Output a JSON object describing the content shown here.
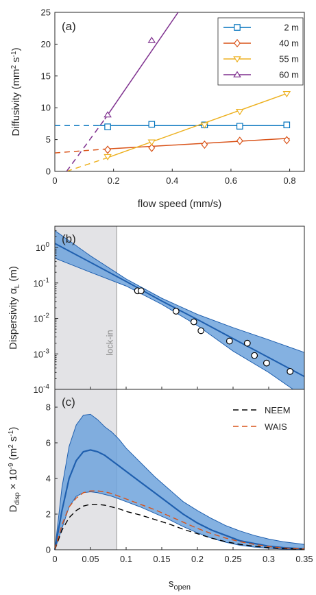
{
  "chart_data": [
    {
      "panel": "(a)",
      "type": "line",
      "xlabel": "flow speed (mm/s)",
      "ylabel_main": "Diffusivity (mm",
      "ylabel_sup1": "2",
      "ylabel_mid": " s",
      "ylabel_sup2": "-1",
      "ylabel_end": ")",
      "xlim": [
        0,
        0.85
      ],
      "ylim": [
        0,
        25
      ],
      "xticks": [
        "0",
        "0.2",
        "0.4",
        "0.6",
        "0.8"
      ],
      "xtick_values": [
        0,
        0.2,
        0.4,
        0.6,
        0.8
      ],
      "yticks": [
        "0",
        "5",
        "10",
        "15",
        "20",
        "25"
      ],
      "ytick_values": [
        0,
        5,
        10,
        15,
        20,
        25
      ],
      "series": [
        {
          "name": "2 m",
          "color": "#0072BD",
          "marker": "square",
          "x": [
            0.18,
            0.33,
            0.51,
            0.63,
            0.79
          ],
          "y": [
            7.0,
            7.4,
            7.3,
            7.1,
            7.3
          ],
          "fit_solid": [
            [
              0.15,
              7.2
            ],
            [
              0.8,
              7.2
            ]
          ],
          "fit_dashed": [
            [
              0,
              7.2
            ],
            [
              0.15,
              7.2
            ]
          ]
        },
        {
          "name": "40 m",
          "color": "#D95319",
          "marker": "diamond",
          "x": [
            0.18,
            0.33,
            0.51,
            0.63,
            0.79
          ],
          "y": [
            3.4,
            3.7,
            4.2,
            4.8,
            4.9
          ],
          "fit_solid": [
            [
              0.17,
              3.5
            ],
            [
              0.8,
              5.2
            ]
          ],
          "fit_dashed": [
            [
              0,
              2.9
            ],
            [
              0.17,
              3.5
            ]
          ]
        },
        {
          "name": "55 m",
          "color": "#EDB120",
          "marker": "triangle-down",
          "x": [
            0.18,
            0.33,
            0.51,
            0.63,
            0.79
          ],
          "y": [
            2.3,
            4.6,
            7.3,
            9.4,
            12.2
          ],
          "fit_solid": [
            [
              0.17,
              2.0
            ],
            [
              0.8,
              12.4
            ]
          ],
          "fit_dashed": [
            [
              0.04,
              0
            ],
            [
              0.17,
              2.0
            ]
          ]
        },
        {
          "name": "60 m",
          "color": "#7E2F8E",
          "marker": "triangle-up",
          "x": [
            0.18,
            0.33
          ],
          "y": [
            8.9,
            20.6
          ],
          "fit_solid": [
            [
              0.17,
              8.2
            ],
            [
              0.42,
              25
            ]
          ],
          "fit_dashed": [
            [
              0.04,
              0
            ],
            [
              0.17,
              8.2
            ]
          ]
        }
      ],
      "legend_position": "top-right"
    },
    {
      "panel": "(b)",
      "type": "scatter",
      "ylabel_main": "Dispersivity  α",
      "ylabel_sub": "L",
      "ylabel_end": " (m)",
      "xlim": [
        0,
        0.35
      ],
      "ylim_log": [
        -4,
        0.6
      ],
      "yscale": "log",
      "ytick_base": "10",
      "ytick_exponents": [
        "-4",
        "-3",
        "-2",
        "-1",
        "0"
      ],
      "ytick_values": [
        -4,
        -3,
        -2,
        -1,
        0
      ],
      "xtick_values": [
        0,
        0.05,
        0.1,
        0.15,
        0.2,
        0.25,
        0.3,
        0.35
      ],
      "shaded_region": {
        "x": [
          0,
          0.087
        ],
        "label": "lock-in"
      },
      "points": {
        "x": [
          0.116,
          0.121,
          0.17,
          0.195,
          0.205,
          0.245,
          0.27,
          0.28,
          0.297,
          0.33
        ],
        "y": [
          0.06,
          0.06,
          0.016,
          0.008,
          0.0045,
          0.0023,
          0.002,
          0.0009,
          0.00055,
          0.00032
        ]
      },
      "fit": {
        "x": [
          0,
          0.05,
          0.1,
          0.15,
          0.2,
          0.25,
          0.3,
          0.35
        ],
        "mid": [
          1.3,
          0.38,
          0.11,
          0.031,
          0.0093,
          0.0027,
          0.00079,
          0.00023
        ],
        "upper": [
          3.0,
          0.58,
          0.13,
          0.037,
          0.013,
          0.0055,
          0.0025,
          0.0011
        ],
        "lower": [
          0.5,
          0.2,
          0.082,
          0.025,
          0.0063,
          0.0012,
          0.0003,
          6e-05
        ]
      }
    },
    {
      "panel": "(c)",
      "type": "area",
      "xlabel_main": "s",
      "xlabel_sub": "open",
      "ylabel_main": "D",
      "ylabel_sub": "disp",
      "ylabel_mid": " × 10",
      "ylabel_sup1": "-9",
      "ylabel_mid2": "  (m",
      "ylabel_sup2": "2",
      "ylabel_mid3": " s",
      "ylabel_sup3": "-1",
      "ylabel_end": ")",
      "xlim": [
        0,
        0.35
      ],
      "ylim": [
        0,
        9
      ],
      "xticks": [
        "0",
        "0.05",
        "0.1",
        "0.15",
        "0.2",
        "0.25",
        "0.3",
        "0.35"
      ],
      "xtick_values": [
        0,
        0.05,
        0.1,
        0.15,
        0.2,
        0.25,
        0.3,
        0.35
      ],
      "yticks": [
        "0",
        "2",
        "4",
        "6",
        "8"
      ],
      "ytick_values": [
        0,
        2,
        4,
        6,
        8
      ],
      "shaded_region": {
        "x": [
          0,
          0.087
        ]
      },
      "band": {
        "x": [
          0,
          0.01,
          0.02,
          0.03,
          0.04,
          0.05,
          0.06,
          0.07,
          0.08,
          0.09,
          0.1,
          0.12,
          0.14,
          0.16,
          0.18,
          0.2,
          0.22,
          0.24,
          0.26,
          0.28,
          0.3,
          0.32,
          0.35
        ],
        "mid": [
          0,
          2.2,
          4.0,
          5.0,
          5.5,
          5.6,
          5.5,
          5.3,
          5.0,
          4.7,
          4.4,
          3.8,
          3.2,
          2.6,
          2.0,
          1.5,
          1.1,
          0.8,
          0.5,
          0.35,
          0.2,
          0.12,
          0.05
        ],
        "upper": [
          0,
          3.5,
          5.8,
          7.0,
          7.55,
          7.6,
          7.3,
          6.9,
          6.6,
          6.2,
          5.7,
          4.9,
          4.1,
          3.4,
          2.7,
          2.2,
          1.75,
          1.35,
          1.05,
          0.8,
          0.6,
          0.45,
          0.3
        ],
        "lower": [
          0,
          1.2,
          2.4,
          3.0,
          3.2,
          3.25,
          3.2,
          3.1,
          3.0,
          2.85,
          2.7,
          2.4,
          2.05,
          1.7,
          1.3,
          0.95,
          0.65,
          0.42,
          0.25,
          0.15,
          0.08,
          0.04,
          0.02
        ]
      },
      "series": [
        {
          "name": "NEEM",
          "color": "#000000",
          "style": "dashed",
          "x": [
            0,
            0.01,
            0.02,
            0.03,
            0.04,
            0.05,
            0.06,
            0.07,
            0.08,
            0.09,
            0.1,
            0.12,
            0.14,
            0.16,
            0.18,
            0.2,
            0.22,
            0.24,
            0.26,
            0.28,
            0.3,
            0.32,
            0.35
          ],
          "y": [
            0,
            1.1,
            1.8,
            2.2,
            2.45,
            2.55,
            2.55,
            2.5,
            2.4,
            2.3,
            2.15,
            1.95,
            1.7,
            1.45,
            1.15,
            0.9,
            0.65,
            0.45,
            0.3,
            0.2,
            0.12,
            0.07,
            0.03
          ]
        },
        {
          "name": "WAIS",
          "color": "#D95319",
          "style": "dashed",
          "x": [
            0,
            0.01,
            0.02,
            0.03,
            0.04,
            0.05,
            0.06,
            0.07,
            0.08,
            0.09,
            0.1,
            0.12,
            0.14,
            0.16,
            0.18,
            0.2,
            0.22,
            0.24,
            0.26,
            0.28,
            0.3,
            0.32,
            0.35
          ],
          "y": [
            0,
            1.4,
            2.4,
            2.9,
            3.2,
            3.3,
            3.3,
            3.25,
            3.15,
            3.0,
            2.85,
            2.55,
            2.25,
            1.9,
            1.55,
            1.2,
            0.9,
            0.65,
            0.45,
            0.3,
            0.18,
            0.1,
            0.05
          ]
        }
      ],
      "legend_position": "top-right"
    }
  ]
}
